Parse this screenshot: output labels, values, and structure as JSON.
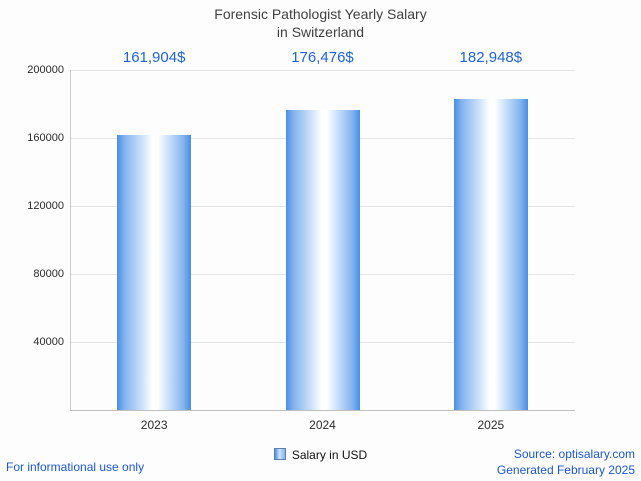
{
  "title_lines": [
    "Forensic Pathologist Yearly Salary",
    "in Switzerland"
  ],
  "chart_data": {
    "type": "bar",
    "title": "Forensic Pathologist Yearly Salary in Switzerland",
    "categories": [
      "2023",
      "2024",
      "2025"
    ],
    "values": [
      161904,
      176476,
      182948
    ],
    "value_labels": [
      "161,904$",
      "176,476$",
      "182,948$"
    ],
    "xlabel": "",
    "ylabel": "",
    "ylim": [
      0,
      200000
    ],
    "yticks": [
      40000,
      80000,
      120000,
      160000,
      200000
    ],
    "grid": "horizontal",
    "legend": [
      "Salary in USD"
    ],
    "legend_position": "bottom-center",
    "colors": {
      "bar_edge": "#4a8de4",
      "bar_highlight": "#ffffff",
      "value_label": "#1f63d6",
      "title": "#3f3f3f",
      "footer_link": "#1a56d6"
    }
  },
  "footer": {
    "left": "For informational use only",
    "source": "Source: optisalary.com",
    "generated": "Generated February 2025"
  }
}
